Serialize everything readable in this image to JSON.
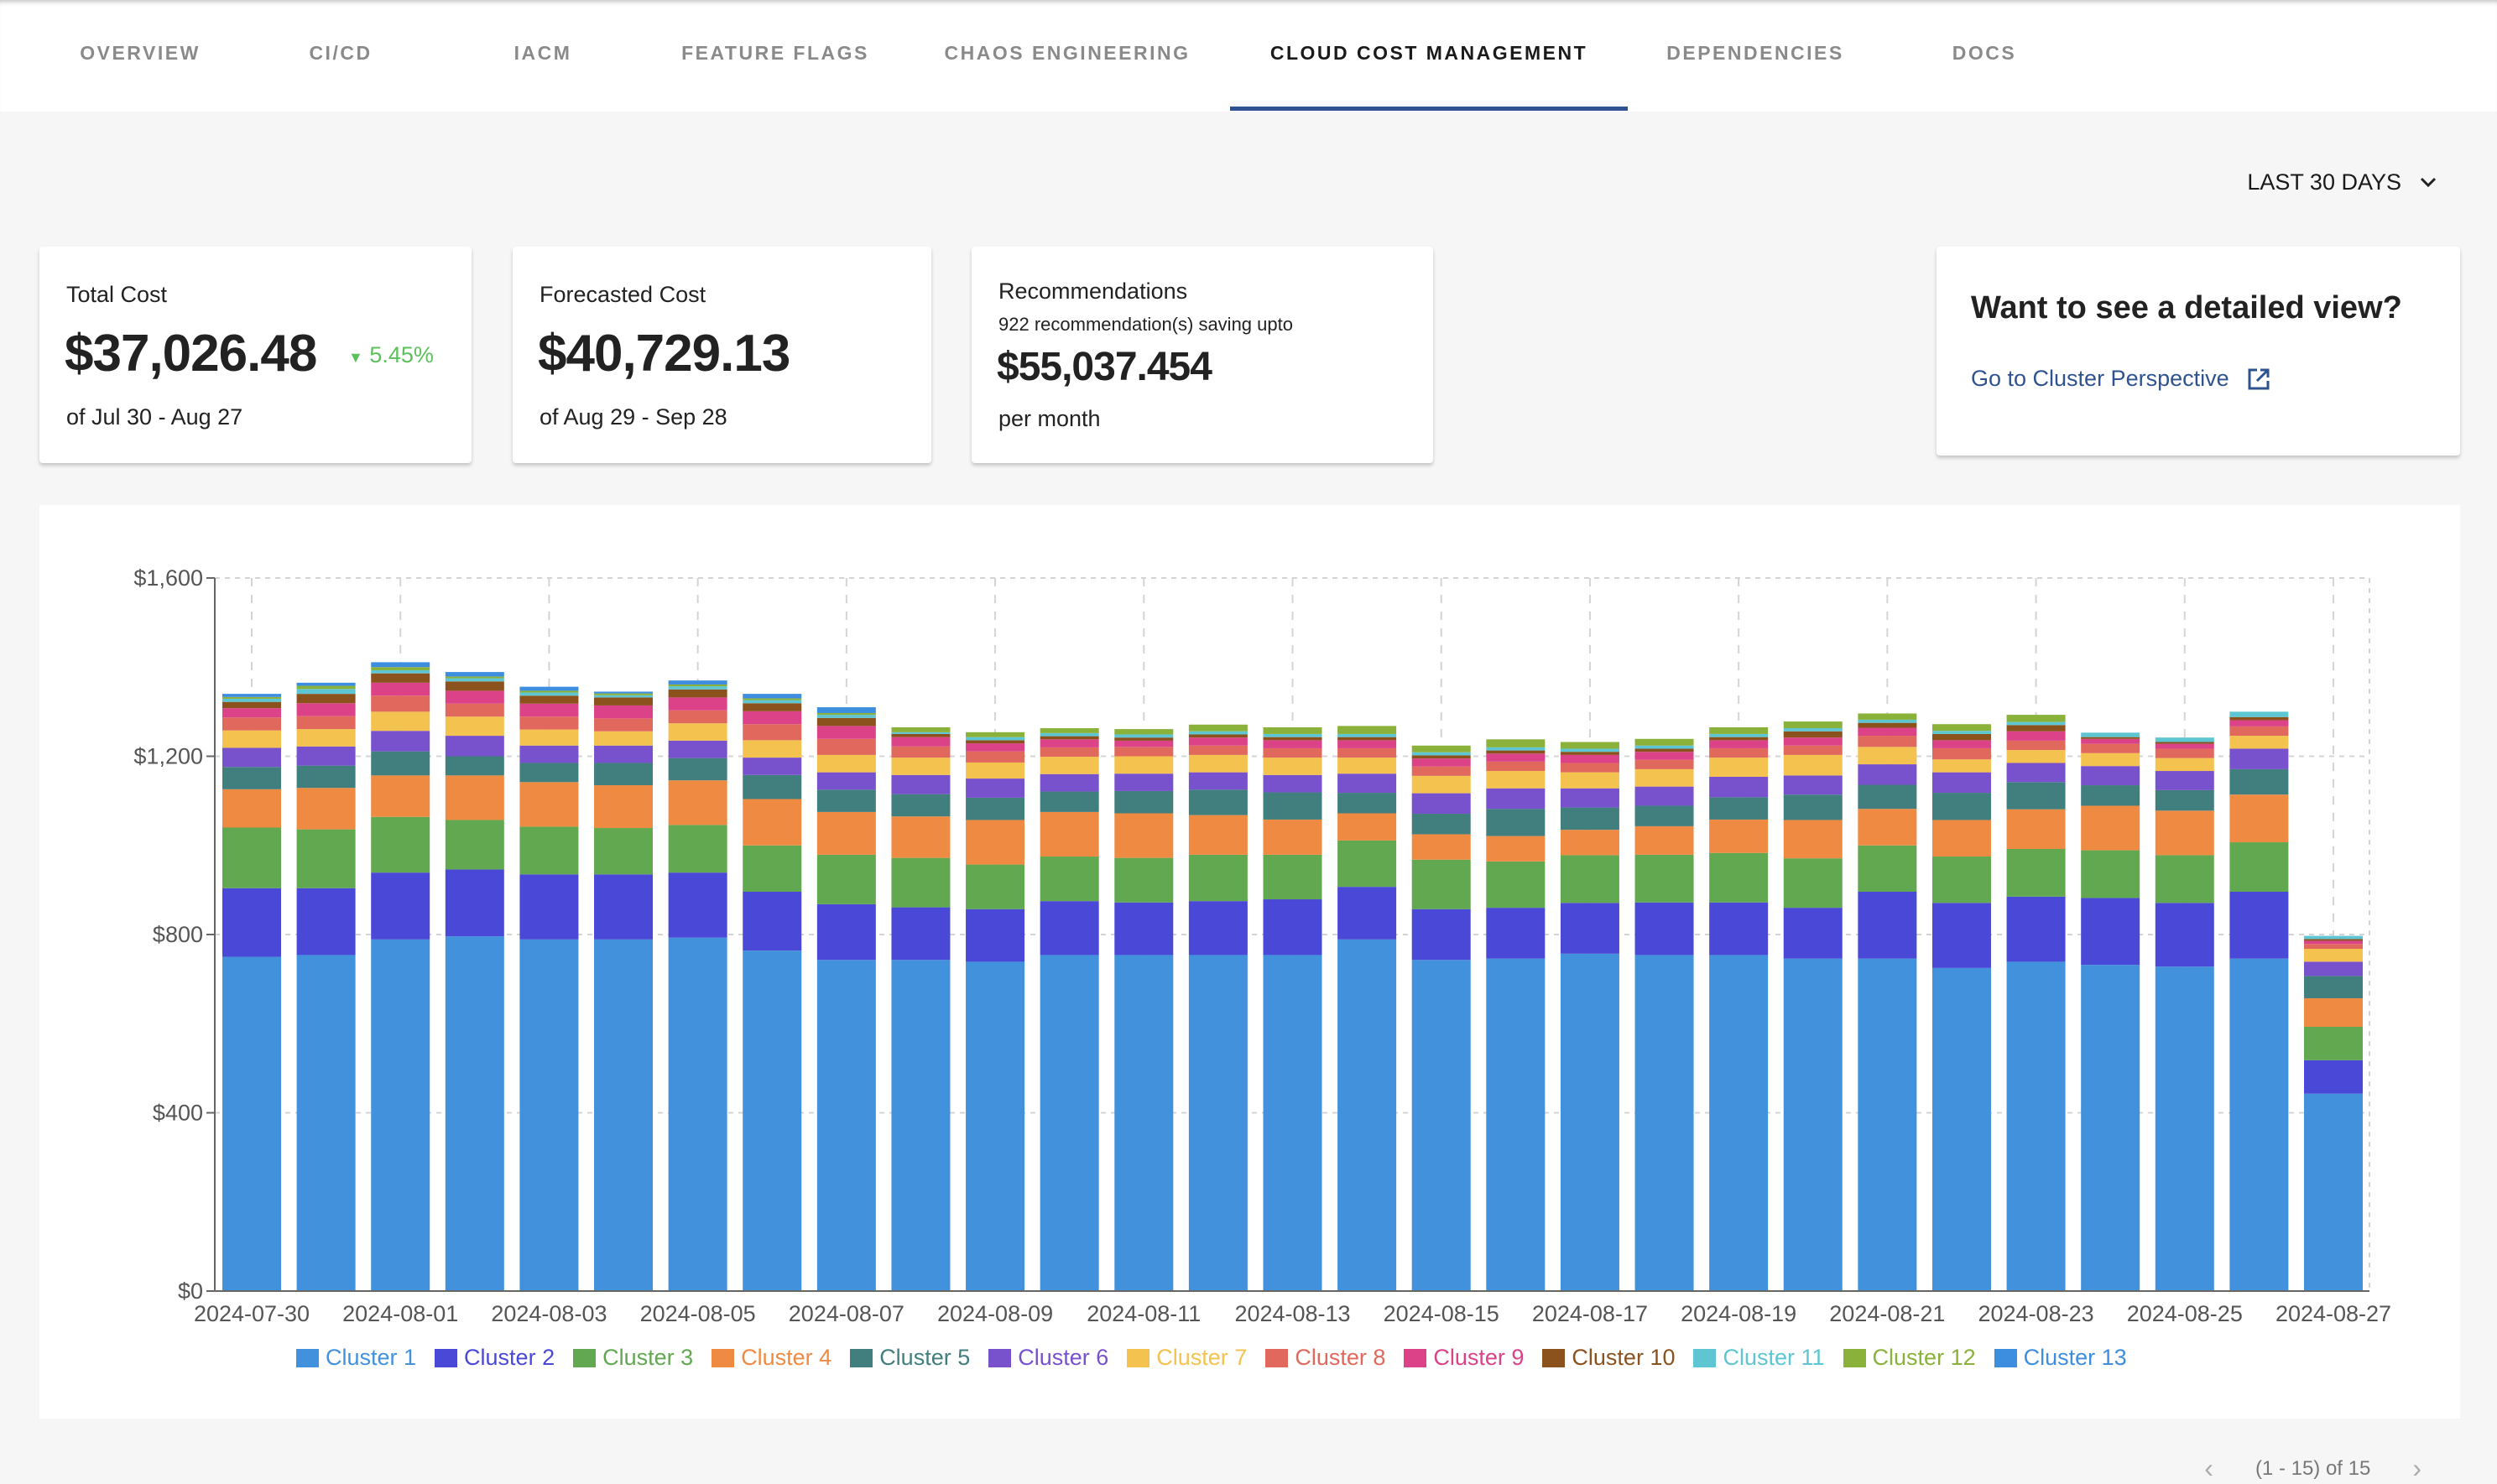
{
  "tabs": [
    {
      "label": "OVERVIEW"
    },
    {
      "label": "CI/CD"
    },
    {
      "label": "IACM"
    },
    {
      "label": "FEATURE FLAGS"
    },
    {
      "label": "CHAOS ENGINEERING"
    },
    {
      "label": "CLOUD COST MANAGEMENT",
      "active": true
    },
    {
      "label": "DEPENDENCIES"
    },
    {
      "label": "DOCS"
    }
  ],
  "range": {
    "label": "LAST 30 DAYS",
    "icon": "chevron-down-icon"
  },
  "cards": {
    "total": {
      "label": "Total Cost",
      "value": "$37,026.48",
      "change": "5.45%",
      "change_icon": "triangle-down-icon",
      "change_color": "#5cc05c",
      "period": "of Jul 30 - Aug 27"
    },
    "forecast": {
      "label": "Forecasted Cost",
      "value": "$40,729.13",
      "period": "of Aug 29 - Sep 28"
    },
    "recs": {
      "label": "Recommendations",
      "sub": "922 recommendation(s) saving upto",
      "value": "$55,037.454",
      "period": "per month"
    },
    "detail": {
      "title": "Want to see a detailed view?",
      "link": "Go to Cluster Perspective",
      "link_icon": "external-link-icon",
      "link_color": "#2f5391"
    }
  },
  "chart_data": {
    "type": "bar",
    "stacked": true,
    "grid": true,
    "legend": "bottom",
    "ylim": [
      0,
      1600
    ],
    "yticks": [
      "$0",
      "$400",
      "$800",
      "$1,200",
      "$1,600"
    ],
    "categories": [
      "2024-07-30",
      "2024-07-31",
      "2024-08-01",
      "2024-08-02",
      "2024-08-03",
      "2024-08-04",
      "2024-08-05",
      "2024-08-06",
      "2024-08-07",
      "2024-08-08",
      "2024-08-09",
      "2024-08-10",
      "2024-08-11",
      "2024-08-12",
      "2024-08-13",
      "2024-08-14",
      "2024-08-15",
      "2024-08-16",
      "2024-08-17",
      "2024-08-18",
      "2024-08-19",
      "2024-08-20",
      "2024-08-21",
      "2024-08-22",
      "2024-08-23",
      "2024-08-24",
      "2024-08-25",
      "2024-08-26",
      "2024-08-27"
    ],
    "xticks": [
      "2024-07-30",
      "2024-08-01",
      "2024-08-03",
      "2024-08-05",
      "2024-08-07",
      "2024-08-09",
      "2024-08-11",
      "2024-08-13",
      "2024-08-15",
      "2024-08-17",
      "2024-08-19",
      "2024-08-21",
      "2024-08-23",
      "2024-08-25",
      "2024-08-27"
    ],
    "series": [
      {
        "name": "Cluster 1",
        "color": "#4191dc",
        "values": [
          750,
          754,
          789,
          796,
          789,
          789,
          793,
          764,
          743,
          743,
          739,
          754,
          754,
          754,
          754,
          789,
          743,
          746,
          757,
          754,
          754,
          746,
          746,
          725,
          739,
          732,
          728,
          746,
          443
        ]
      },
      {
        "name": "Cluster 2",
        "color": "#4a48d6",
        "values": [
          154,
          150,
          150,
          150,
          146,
          146,
          146,
          132,
          125,
          118,
          118,
          121,
          118,
          121,
          125,
          118,
          114,
          114,
          114,
          118,
          118,
          114,
          150,
          146,
          146,
          150,
          143,
          150,
          75
        ]
      },
      {
        "name": "Cluster 3",
        "color": "#61a851",
        "values": [
          136,
          132,
          125,
          111,
          107,
          104,
          107,
          104,
          111,
          111,
          100,
          100,
          100,
          104,
          100,
          104,
          111,
          104,
          107,
          107,
          111,
          111,
          104,
          104,
          107,
          107,
          107,
          111,
          75
        ]
      },
      {
        "name": "Cluster 4",
        "color": "#ef8a43",
        "values": [
          86,
          93,
          93,
          100,
          100,
          96,
          100,
          104,
          96,
          93,
          100,
          100,
          100,
          89,
          79,
          61,
          57,
          57,
          57,
          64,
          75,
          86,
          82,
          82,
          89,
          100,
          100,
          107,
          64
        ]
      },
      {
        "name": "Cluster 5",
        "color": "#417f7e",
        "values": [
          50,
          50,
          54,
          43,
          43,
          50,
          50,
          54,
          50,
          50,
          50,
          46,
          50,
          57,
          61,
          46,
          46,
          61,
          50,
          46,
          50,
          57,
          54,
          61,
          61,
          46,
          46,
          57,
          50
        ]
      },
      {
        "name": "Cluster 6",
        "color": "#7851cd",
        "values": [
          43,
          43,
          46,
          46,
          39,
          39,
          39,
          39,
          39,
          43,
          43,
          39,
          39,
          39,
          39,
          43,
          46,
          46,
          43,
          43,
          46,
          43,
          46,
          46,
          43,
          43,
          43,
          46,
          32
        ]
      },
      {
        "name": "Cluster 7",
        "color": "#f3c24f",
        "values": [
          39,
          39,
          43,
          43,
          36,
          32,
          39,
          39,
          39,
          39,
          36,
          39,
          39,
          39,
          39,
          36,
          39,
          39,
          36,
          39,
          43,
          46,
          39,
          29,
          29,
          29,
          29,
          29,
          29
        ]
      },
      {
        "name": "Cluster 8",
        "color": "#e0685c",
        "values": [
          29,
          29,
          36,
          29,
          29,
          29,
          29,
          36,
          36,
          25,
          25,
          21,
          21,
          21,
          21,
          21,
          21,
          21,
          21,
          21,
          21,
          21,
          25,
          25,
          21,
          21,
          21,
          21,
          11
        ]
      },
      {
        "name": "Cluster 9",
        "color": "#dc4287",
        "values": [
          21,
          29,
          29,
          29,
          29,
          29,
          29,
          29,
          29,
          21,
          18,
          18,
          14,
          18,
          18,
          18,
          18,
          18,
          18,
          18,
          18,
          18,
          18,
          18,
          21,
          11,
          11,
          14,
          7
        ]
      },
      {
        "name": "Cluster 10",
        "color": "#8b521d",
        "values": [
          14,
          21,
          21,
          21,
          18,
          18,
          18,
          18,
          18,
          7,
          7,
          7,
          7,
          7,
          7,
          7,
          7,
          7,
          7,
          7,
          7,
          14,
          11,
          14,
          14,
          4,
          4,
          7,
          4
        ]
      },
      {
        "name": "Cluster 11",
        "color": "#5ec5d2",
        "values": [
          7,
          11,
          7,
          7,
          7,
          5,
          7,
          7,
          7,
          4,
          7,
          7,
          7,
          7,
          7,
          7,
          7,
          7,
          7,
          7,
          7,
          7,
          7,
          7,
          7,
          10,
          10,
          12,
          7
        ]
      },
      {
        "name": "Cluster 12",
        "color": "#8ab23a",
        "values": [
          4,
          7,
          7,
          4,
          4,
          4,
          4,
          4,
          4,
          11,
          11,
          11,
          12,
          15,
          15,
          18,
          15,
          18,
          15,
          15,
          15,
          15,
          14,
          15,
          16,
          0,
          0,
          0,
          0
        ]
      },
      {
        "name": "Cluster 13",
        "color": "#3e8ee0",
        "values": [
          7,
          7,
          11,
          10,
          9,
          4,
          9,
          10,
          13,
          0,
          0,
          0,
          0,
          0,
          0,
          0,
          0,
          0,
          0,
          0,
          0,
          0,
          0,
          0,
          0,
          0,
          0,
          0,
          0
        ]
      }
    ]
  },
  "pagination": {
    "label": "(1 - 15) of 15",
    "prev_icon": "chevron-left-icon",
    "next_icon": "chevron-right-icon"
  }
}
